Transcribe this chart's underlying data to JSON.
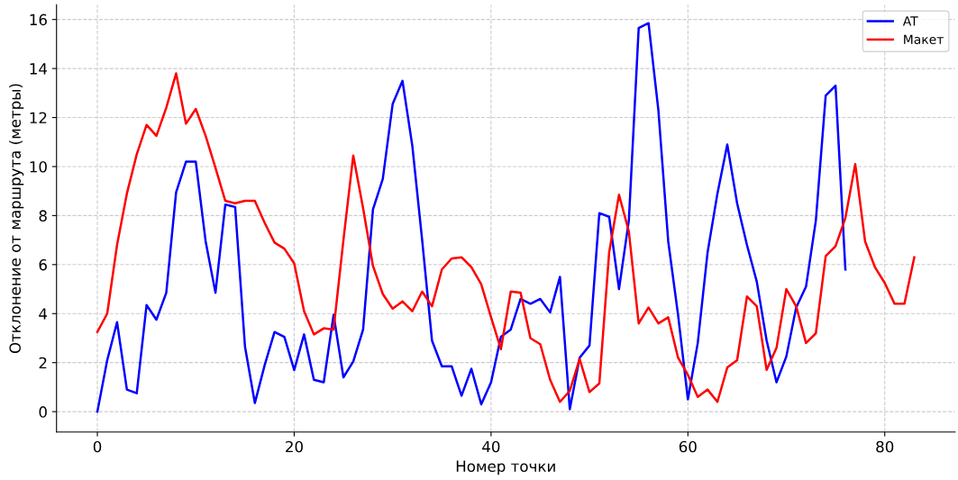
{
  "chart_data": {
    "type": "line",
    "xlabel": "Номер точки",
    "ylabel": "Отклонение от маршрута (метры)",
    "xlim": [
      -4.15,
      87.15
    ],
    "xticks": [
      0,
      20,
      40,
      60,
      80
    ],
    "ylim": [
      -0.83,
      16.6
    ],
    "yticks": [
      0,
      2,
      4,
      6,
      8,
      10,
      12,
      14,
      16
    ],
    "grid": true,
    "legend": "top right",
    "line_style": "solid",
    "marker": "none",
    "series": [
      {
        "name": "AT",
        "color": "#0000ff",
        "x": [
          0,
          1,
          2,
          3,
          4,
          5,
          6,
          7,
          8,
          9,
          10,
          11,
          12,
          13,
          14,
          15,
          16,
          17,
          18,
          19,
          20,
          21,
          22,
          23,
          24,
          25,
          26,
          27,
          28,
          29,
          30,
          31,
          32,
          33,
          34,
          35,
          36,
          37,
          38,
          39,
          40,
          41,
          42,
          43,
          44,
          45,
          46,
          47,
          48,
          49,
          50,
          51,
          52,
          53,
          54,
          55,
          56,
          57,
          58,
          59,
          60,
          61,
          62,
          63,
          64,
          65,
          66,
          67,
          68,
          69,
          70,
          71,
          72,
          73,
          74,
          75,
          76
        ],
        "values": [
          0,
          2.1,
          3.65,
          0.9,
          0.75,
          4.35,
          3.75,
          4.85,
          8.95,
          10.2,
          10.2,
          6.95,
          4.85,
          8.45,
          8.35,
          2.65,
          0.35,
          1.9,
          3.25,
          3.05,
          1.7,
          3.15,
          1.3,
          1.2,
          3.95,
          1.4,
          2.05,
          3.35,
          8.25,
          9.5,
          12.55,
          13.5,
          10.85,
          7.0,
          2.9,
          1.85,
          1.85,
          0.65,
          1.75,
          0.3,
          1.2,
          3.05,
          3.35,
          4.6,
          4.4,
          4.6,
          4.05,
          5.5,
          0.1,
          2.2,
          2.7,
          8.1,
          7.95,
          5.0,
          7.8,
          15.65,
          15.85,
          12.3,
          6.95,
          3.95,
          0.5,
          2.8,
          6.5,
          8.9,
          10.9,
          8.5,
          6.8,
          5.3,
          2.9,
          1.2,
          2.25,
          4.25,
          5.1,
          7.8,
          12.9,
          13.3,
          5.8
        ]
      },
      {
        "name": "Макет",
        "color": "#ff0000",
        "x": [
          0,
          1,
          2,
          3,
          4,
          5,
          6,
          7,
          8,
          9,
          10,
          11,
          12,
          13,
          14,
          15,
          16,
          17,
          18,
          19,
          20,
          21,
          22,
          23,
          24,
          25,
          26,
          27,
          28,
          29,
          30,
          31,
          32,
          33,
          34,
          35,
          36,
          37,
          38,
          39,
          40,
          41,
          42,
          43,
          44,
          45,
          46,
          47,
          48,
          49,
          50,
          51,
          52,
          53,
          54,
          55,
          56,
          57,
          58,
          59,
          60,
          61,
          62,
          63,
          64,
          65,
          66,
          67,
          68,
          69,
          70,
          71,
          72,
          73,
          74,
          75,
          76,
          77,
          78,
          79,
          80,
          81,
          82,
          83
        ],
        "values": [
          3.25,
          4.0,
          6.8,
          8.9,
          10.5,
          11.7,
          11.25,
          12.4,
          13.8,
          11.75,
          12.35,
          11.25,
          9.95,
          8.6,
          8.5,
          8.6,
          8.6,
          7.7,
          6.9,
          6.65,
          6.05,
          4.1,
          3.15,
          3.4,
          3.35,
          7.0,
          10.45,
          8.3,
          5.95,
          4.8,
          4.2,
          4.5,
          4.1,
          4.9,
          4.3,
          5.8,
          6.25,
          6.3,
          5.9,
          5.2,
          3.85,
          2.55,
          4.9,
          4.85,
          3.0,
          2.75,
          1.3,
          0.4,
          0.85,
          2.15,
          0.8,
          1.15,
          6.5,
          8.85,
          7.35,
          3.6,
          4.25,
          3.6,
          3.85,
          2.2,
          1.5,
          0.6,
          0.9,
          0.4,
          1.8,
          2.1,
          4.7,
          4.3,
          1.7,
          2.6,
          5.0,
          4.3,
          2.8,
          3.2,
          6.35,
          6.75,
          7.9,
          10.1,
          6.95,
          5.9,
          5.25,
          4.4,
          4.4,
          6.3
        ]
      }
    ]
  }
}
